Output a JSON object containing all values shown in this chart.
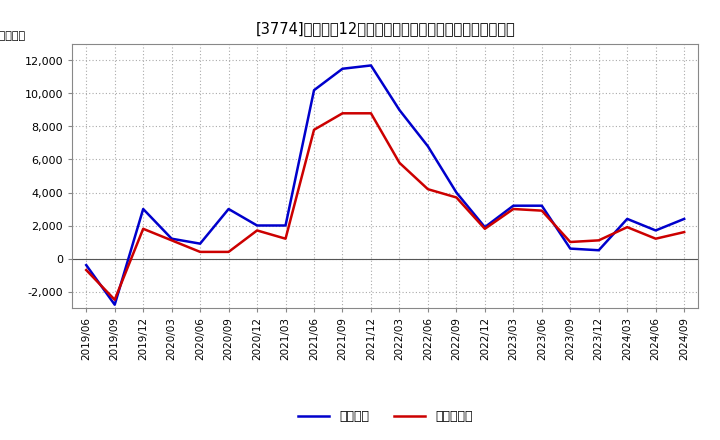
{
  "title": "[㝴] 利益だ12か月移動合計の対前年同期増減額の推移",
  "title_str": "[3774]　利益だ12か月移動合計の対前年同期増減額の推移",
  "ylabel": "（百万円）",
  "x_labels": [
    "2019/06",
    "2019/09",
    "2019/12",
    "2020/03",
    "2020/06",
    "2020/09",
    "2020/12",
    "2021/03",
    "2021/06",
    "2021/09",
    "2021/12",
    "2022/03",
    "2022/06",
    "2022/09",
    "2022/12",
    "2023/03",
    "2023/06",
    "2023/09",
    "2023/12",
    "2024/03",
    "2024/06",
    "2024/09"
  ],
  "keijo_rieki": [
    -400,
    -2800,
    3000,
    1200,
    900,
    3000,
    2000,
    2000,
    10200,
    11500,
    11700,
    9000,
    6800,
    4000,
    1900,
    3200,
    3200,
    600,
    500,
    2400,
    1700,
    2400
  ],
  "toki_jun_rieki": [
    -700,
    -2500,
    1800,
    1100,
    400,
    400,
    1700,
    1200,
    7800,
    8800,
    8800,
    5800,
    4200,
    3700,
    1800,
    3000,
    2900,
    1000,
    1100,
    1900,
    1200,
    1600
  ],
  "line_color_keijo": "#0000cc",
  "line_color_toki": "#cc0000",
  "background_color": "#ffffff",
  "plot_bg_color": "#ffffff",
  "grid_color": "#aaaaaa",
  "ylim": [
    -3000,
    13000
  ],
  "yticks": [
    -2000,
    0,
    2000,
    4000,
    6000,
    8000,
    10000,
    12000
  ],
  "legend_keijo": "経常利益",
  "legend_toki": "当期純利益"
}
